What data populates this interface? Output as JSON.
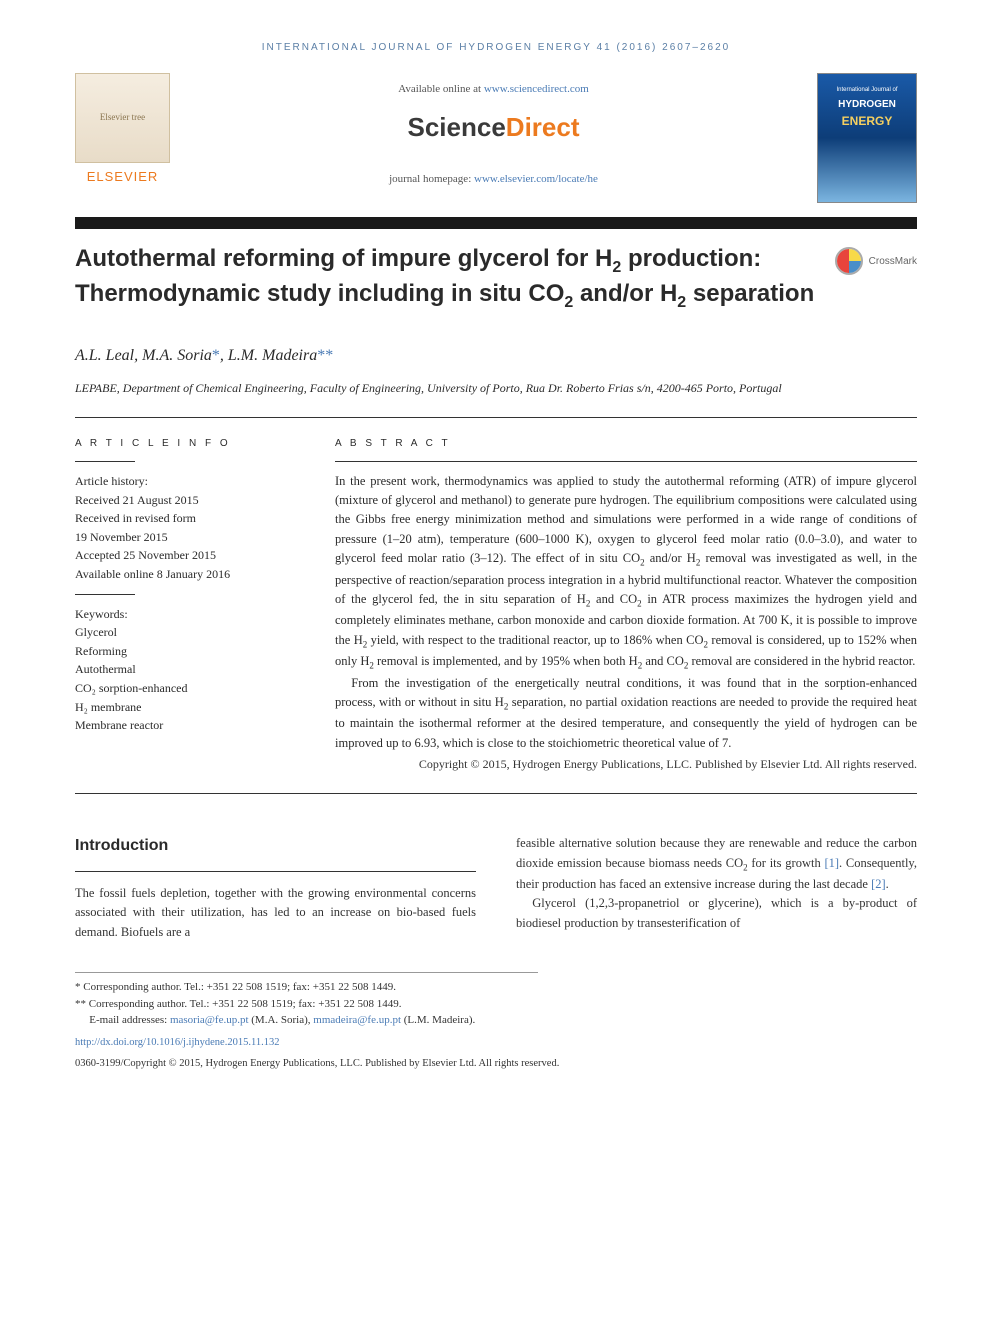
{
  "journal_header": "INTERNATIONAL JOURNAL OF HYDROGEN ENERGY 41 (2016) 2607–2620",
  "header": {
    "available_prefix": "Available online at ",
    "available_link": "www.sciencedirect.com",
    "sd_logo_part1": "Science",
    "sd_logo_part2": "Direct",
    "homepage_prefix": "journal homepage: ",
    "homepage_link": "www.elsevier.com/locate/he",
    "elsevier_name": "ELSEVIER",
    "elsevier_tree_alt": "Elsevier tree",
    "cover_j1": "International Journal of",
    "cover_j2": "HYDROGEN",
    "cover_j3": "ENERGY"
  },
  "crossmark_label": "CrossMark",
  "title_html": "Autothermal reforming of impure glycerol for H<sub>2</sub> production: Thermodynamic study including in situ CO<sub>2</sub> and/or H<sub>2</sub> separation",
  "authors_html": "A.L. Leal, M.A. Soria<span class='star'>*</span>, L.M. Madeira<span class='star'>**</span>",
  "affiliation": "LEPABE, Department of Chemical Engineering, Faculty of Engineering, University of Porto, Rua Dr. Roberto Frias s/n, 4200-465 Porto, Portugal",
  "info": {
    "heading": "A R T I C L E   I N F O",
    "history_label": "Article history:",
    "received": "Received 21 August 2015",
    "revised1": "Received in revised form",
    "revised2": "19 November 2015",
    "accepted": "Accepted 25 November 2015",
    "online": "Available online 8 January 2016",
    "keywords_label": "Keywords:",
    "keywords": [
      "Glycerol",
      "Reforming",
      "Autothermal",
      "CO₂ sorption-enhanced",
      "H₂ membrane",
      "Membrane reactor"
    ]
  },
  "abstract": {
    "heading": "A B S T R A C T",
    "p1_html": "In the present work, thermodynamics was applied to study the autothermal reforming (ATR) of impure glycerol (mixture of glycerol and methanol) to generate pure hydrogen. The equilibrium compositions were calculated using the Gibbs free energy minimization method and simulations were performed in a wide range of conditions of pressure (1–20 atm), temperature (600–1000 K), oxygen to glycerol feed molar ratio (0.0–3.0), and water to glycerol feed molar ratio (3–12). The effect of in situ CO<sub>2</sub> and/or H<sub>2</sub> removal was investigated as well, in the perspective of reaction/separation process integration in a hybrid multifunctional reactor. Whatever the composition of the glycerol fed, the in situ separation of H<sub>2</sub> and CO<sub>2</sub> in ATR process maximizes the hydrogen yield and completely eliminates methane, carbon monoxide and carbon dioxide formation. At 700 K, it is possible to improve the H<sub>2</sub> yield, with respect to the traditional reactor, up to 186% when CO<sub>2</sub> removal is considered, up to 152% when only H<sub>2</sub> removal is implemented, and by 195% when both H<sub>2</sub> and CO<sub>2</sub> removal are considered in the hybrid reactor.",
    "p2_html": "From the investigation of the energetically neutral conditions, it was found that in the sorption-enhanced process, with or without in situ H<sub>2</sub> separation, no partial oxidation reactions are needed to provide the required heat to maintain the isothermal reformer at the desired temperature, and consequently the yield of hydrogen can be improved up to 6.93, which is close to the stoichiometric theoretical value of 7.",
    "copyright": "Copyright © 2015, Hydrogen Energy Publications, LLC. Published by Elsevier Ltd. All rights reserved."
  },
  "body": {
    "section_heading": "Introduction",
    "col1_p1": "The fossil fuels depletion, together with the growing environmental concerns associated with their utilization, has led to an increase on bio-based fuels demand. Biofuels are a",
    "col2_p1_html": "feasible alternative solution because they are renewable and reduce the carbon dioxide emission because biomass needs CO<sub>2</sub> for its growth <a class='ref-link' href='#' data-name='ref-link-1' data-interactable='true'>[1]</a>. Consequently, their production has faced an extensive increase during the last decade <a class='ref-link' href='#' data-name='ref-link-2' data-interactable='true'>[2]</a>.",
    "col2_p2": "Glycerol (1,2,3-propanetriol or glycerine), which is a by-product of biodiesel production by transesterification of"
  },
  "footnotes": {
    "l1": "* Corresponding author. Tel.: +351 22 508 1519; fax: +351 22 508 1449.",
    "l2": "** Corresponding author. Tel.: +351 22 508 1519; fax: +351 22 508 1449.",
    "l3_prefix": "E-mail addresses: ",
    "email1": "masoria@fe.up.pt",
    "l3_mid1": " (M.A. Soria), ",
    "email2": "mmadeira@fe.up.pt",
    "l3_mid2": " (L.M. Madeira).",
    "doi": "http://dx.doi.org/10.1016/j.ijhydene.2015.11.132",
    "bottom": "0360-3199/Copyright © 2015, Hydrogen Energy Publications, LLC. Published by Elsevier Ltd. All rights reserved."
  },
  "colors": {
    "link": "#4a7bb5",
    "orange": "#ec7a1f",
    "text": "#2a2a2a",
    "bar": "#1a1a1a"
  }
}
